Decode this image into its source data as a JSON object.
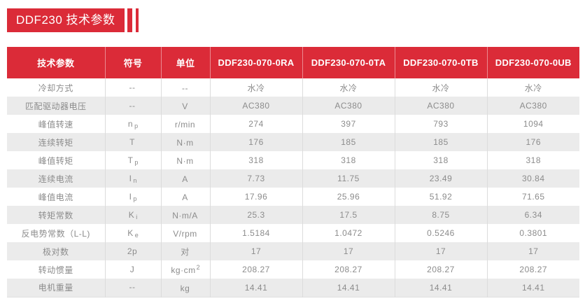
{
  "page": {
    "title": "DDF230 技术参数"
  },
  "colors": {
    "accent_red": "#DB2B38",
    "stripe_gray": "#EBEBEB",
    "text_gray": "#8C8C8C"
  },
  "table": {
    "headers": [
      "技术参数",
      "符号",
      "单位",
      "DDF230-070-0RA",
      "DDF230-070-0TA",
      "DDF230-070-0TB",
      "DDF230-070-0UB"
    ],
    "rows": [
      {
        "param": "冷却方式",
        "symbol": "--",
        "unit": "--",
        "values": [
          "水冷",
          "水冷",
          "水冷",
          "水冷"
        ]
      },
      {
        "param": "匹配驱动器电压",
        "symbol": "--",
        "unit": "V",
        "values": [
          "AC380",
          "AC380",
          "AC380",
          "AC380"
        ]
      },
      {
        "param": "峰值转速",
        "symbol": "n",
        "symbol_sub": "p",
        "unit": "r/min",
        "values": [
          "274",
          "397",
          "793",
          "1094"
        ]
      },
      {
        "param": "连续转矩",
        "symbol": "T",
        "unit": "N·m",
        "values": [
          "176",
          "185",
          "185",
          "176"
        ]
      },
      {
        "param": "峰值转矩",
        "symbol": "T",
        "symbol_sub": "p",
        "unit": "N·m",
        "values": [
          "318",
          "318",
          "318",
          "318"
        ]
      },
      {
        "param": "连续电流",
        "symbol": "I",
        "symbol_sub": "n",
        "unit": "A",
        "values": [
          "7.73",
          "11.75",
          "23.49",
          "30.84"
        ]
      },
      {
        "param": "峰值电流",
        "symbol": "I",
        "symbol_sub": "p",
        "unit": "A",
        "values": [
          "17.96",
          "25.96",
          "51.92",
          "71.65"
        ]
      },
      {
        "param": "转矩常数",
        "symbol": "K",
        "symbol_sub": "i",
        "unit": "N·m/A",
        "values": [
          "25.3",
          "17.5",
          "8.75",
          "6.34"
        ]
      },
      {
        "param": "反电势常数（L-L)",
        "symbol": "K",
        "symbol_sub": "e",
        "unit": "V/rpm",
        "values": [
          "1.5184",
          "1.0472",
          "0.5246",
          "0.3801"
        ]
      },
      {
        "param": "极对数",
        "symbol": "2p",
        "unit": "对",
        "values": [
          "17",
          "17",
          "17",
          "17"
        ]
      },
      {
        "param": "转动惯量",
        "symbol": "J",
        "unit": "kg·cm",
        "unit_sup": "2",
        "values": [
          "208.27",
          "208.27",
          "208.27",
          "208.27"
        ]
      },
      {
        "param": "电机重量",
        "symbol": "--",
        "unit": "kg",
        "values": [
          "14.41",
          "14.41",
          "14.41",
          "14.41"
        ]
      }
    ]
  }
}
